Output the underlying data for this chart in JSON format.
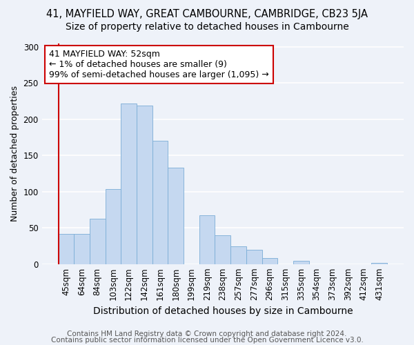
{
  "title1": "41, MAYFIELD WAY, GREAT CAMBOURNE, CAMBRIDGE, CB23 5JA",
  "title2": "Size of property relative to detached houses in Cambourne",
  "xlabel": "Distribution of detached houses by size in Cambourne",
  "ylabel": "Number of detached properties",
  "categories": [
    "45sqm",
    "64sqm",
    "84sqm",
    "103sqm",
    "122sqm",
    "142sqm",
    "161sqm",
    "180sqm",
    "199sqm",
    "219sqm",
    "238sqm",
    "257sqm",
    "277sqm",
    "296sqm",
    "315sqm",
    "335sqm",
    "354sqm",
    "373sqm",
    "392sqm",
    "412sqm",
    "431sqm"
  ],
  "values": [
    42,
    42,
    63,
    104,
    222,
    219,
    170,
    133,
    0,
    67,
    40,
    24,
    20,
    8,
    0,
    4,
    0,
    0,
    0,
    0,
    2
  ],
  "bar_color": "#c5d8f0",
  "bar_edge_color": "#7aadd6",
  "annotation_line1": "41 MAYFIELD WAY: 52sqm",
  "annotation_line2": "← 1% of detached houses are smaller (9)",
  "annotation_line3": "99% of semi-detached houses are larger (1,095) →",
  "annotation_box_color": "#ffffff",
  "annotation_box_edge_color": "#cc0000",
  "vline_color": "#cc0000",
  "ylim": [
    0,
    305
  ],
  "yticks": [
    0,
    50,
    100,
    150,
    200,
    250,
    300
  ],
  "footer1": "Contains HM Land Registry data © Crown copyright and database right 2024.",
  "footer2": "Contains public sector information licensed under the Open Government Licence v3.0.",
  "background_color": "#eef2f9",
  "grid_color": "#ffffff",
  "title1_fontsize": 10.5,
  "title2_fontsize": 10,
  "xlabel_fontsize": 10,
  "ylabel_fontsize": 9,
  "tick_fontsize": 8.5,
  "annotation_fontsize": 9,
  "footer_fontsize": 7.5
}
